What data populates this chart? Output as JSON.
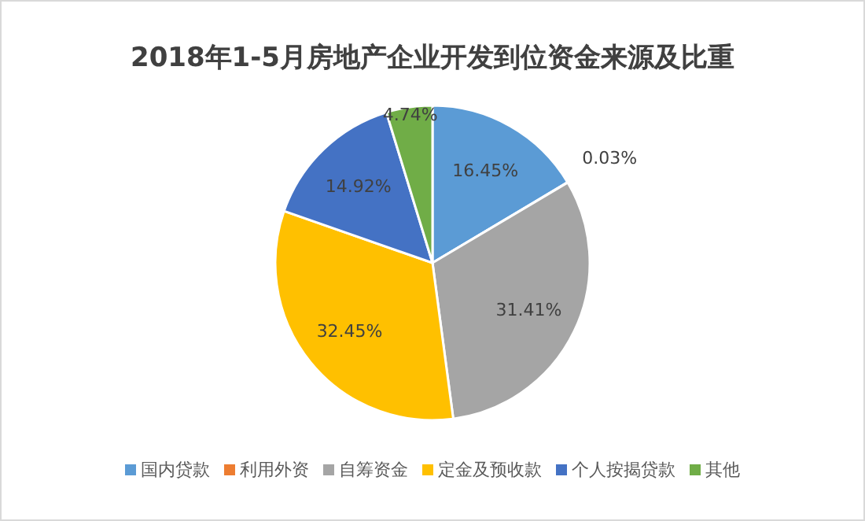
{
  "chart_data": {
    "type": "pie",
    "title": "2018年1-5月房地产企业开发到位资金来源及比重",
    "categories": [
      "国内贷款",
      "利用外资",
      "自筹资金",
      "定金及预收款",
      "个人按揭贷款",
      "其他"
    ],
    "values": [
      16.45,
      0.03,
      31.41,
      32.45,
      14.92,
      4.74
    ],
    "colors": [
      "#5b9bd5",
      "#ed7d31",
      "#a5a5a5",
      "#ffc000",
      "#4472c4",
      "#70ad47"
    ],
    "value_labels": [
      "16.45%",
      "0.03%",
      "31.41%",
      "32.45%",
      "14.92%",
      "4.74%"
    ],
    "legend": "bottom"
  }
}
